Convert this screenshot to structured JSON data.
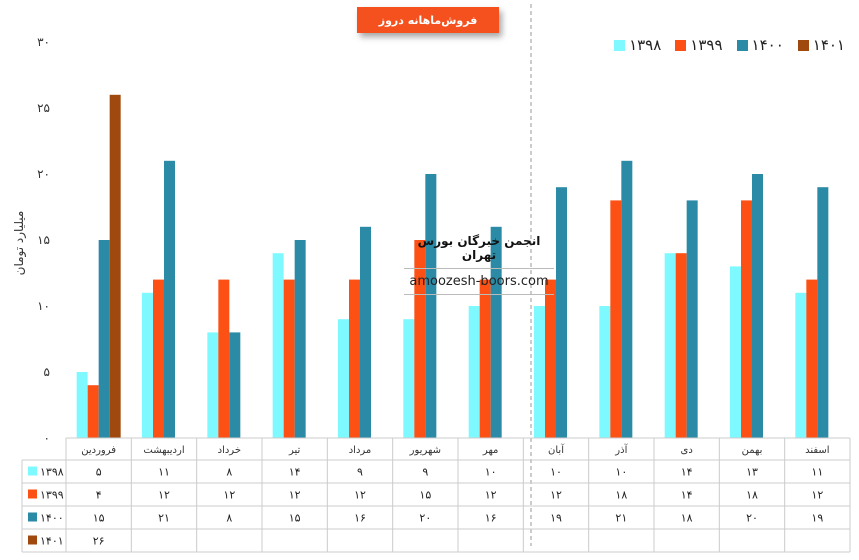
{
  "title": "فروش‌ماهانه دروز",
  "watermark": {
    "title": "انجمن خبرگان بورس تهران",
    "url": "amoozesh-boors.com"
  },
  "chart_data": {
    "type": "bar",
    "ylabel": "میلیارد تومان",
    "ylim": [
      0,
      30
    ],
    "yticks": [
      "۰",
      "۵",
      "۱۰",
      "۱۵",
      "۲۰",
      "۲۵",
      "۳۰"
    ],
    "categories": [
      "فروردین",
      "اردیبهشت",
      "خرداد",
      "تیر",
      "مرداد",
      "شهریور",
      "مهر",
      "آبان",
      "آذر",
      "دی",
      "بهمن",
      "اسفند"
    ],
    "legend_position": "top-right",
    "series": [
      {
        "name": "۱۳۹۸",
        "color": "#7ef9ff",
        "values": [
          5,
          11,
          8,
          14,
          9,
          9,
          10,
          10,
          10,
          14,
          13,
          11
        ],
        "labels": [
          "۵",
          "۱۱",
          "۸",
          "۱۴",
          "۹",
          "۹",
          "۱۰",
          "۱۰",
          "۱۰",
          "۱۴",
          "۱۳",
          "۱۱"
        ]
      },
      {
        "name": "۱۳۹۹",
        "color": "#fc5014",
        "values": [
          4,
          12,
          12,
          12,
          12,
          15,
          12,
          12,
          18,
          14,
          18,
          12
        ],
        "labels": [
          "۴",
          "۱۲",
          "۱۲",
          "۱۲",
          "۱۲",
          "۱۵",
          "۱۲",
          "۱۲",
          "۱۸",
          "۱۴",
          "۱۸",
          "۱۲"
        ]
      },
      {
        "name": "۱۴۰۰",
        "color": "#2b8aa6",
        "values": [
          15,
          21,
          8,
          15,
          16,
          20,
          16,
          19,
          21,
          18,
          20,
          19
        ],
        "labels": [
          "۱۵",
          "۲۱",
          "۸",
          "۱۵",
          "۱۶",
          "۲۰",
          "۱۶",
          "۱۹",
          "۲۱",
          "۱۸",
          "۲۰",
          "۱۹"
        ]
      },
      {
        "name": "۱۴۰۱",
        "color": "#a0490e",
        "values": [
          26,
          null,
          null,
          null,
          null,
          null,
          null,
          null,
          null,
          null,
          null,
          null
        ],
        "labels": [
          "۲۶",
          "",
          "",
          "",
          "",
          "",
          "",
          "",
          "",
          "",
          "",
          ""
        ]
      }
    ]
  }
}
